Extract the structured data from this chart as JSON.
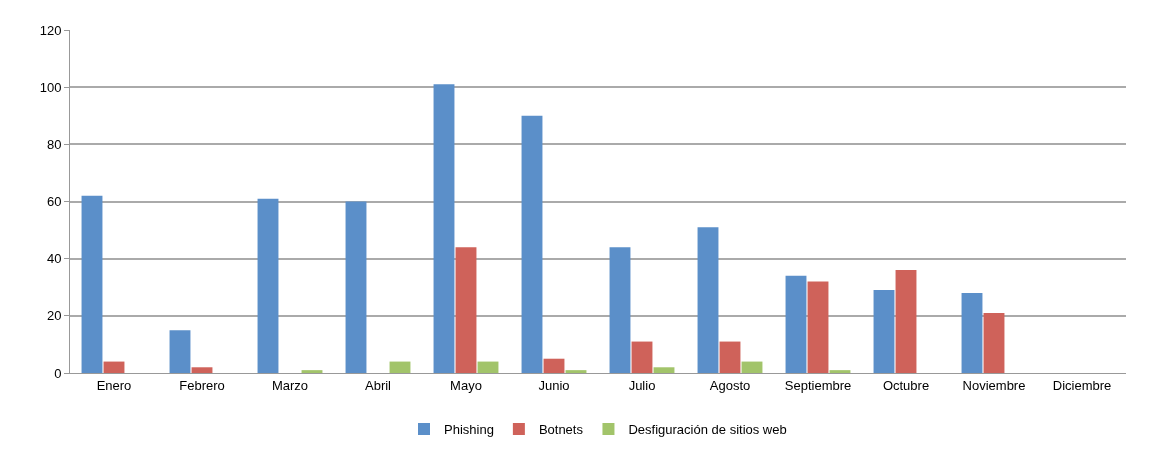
{
  "chart_data": {
    "type": "bar",
    "categories": [
      "Enero",
      "Febrero",
      "Marzo",
      "Abril",
      "Mayo",
      "Junio",
      "Julio",
      "Agosto",
      "Septiembre",
      "Octubre",
      "Noviembre",
      "Diciembre"
    ],
    "series": [
      {
        "name": "Phishing",
        "color": "#5b8fc9",
        "values": [
          62,
          15,
          61,
          60,
          101,
          90,
          44,
          51,
          34,
          29,
          28,
          null
        ]
      },
      {
        "name": "Botnets",
        "color": "#cf625a",
        "values": [
          4,
          2,
          0,
          0,
          44,
          5,
          11,
          11,
          32,
          36,
          21,
          null
        ]
      },
      {
        "name": "Desfiguración de sitios web",
        "color": "#a2c46a",
        "values": [
          0,
          0,
          1,
          4,
          4,
          1,
          2,
          4,
          1,
          0,
          0,
          null
        ]
      }
    ],
    "ylim": [
      0,
      120
    ],
    "yticks": [
      0,
      20,
      40,
      60,
      80,
      100,
      120
    ],
    "grid": "y",
    "legend": "bottom"
  }
}
